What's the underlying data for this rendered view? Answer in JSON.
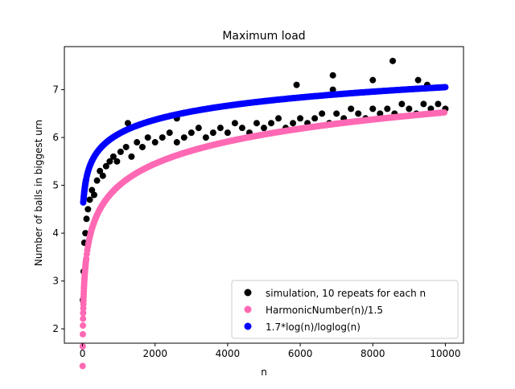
{
  "chart_data": {
    "type": "scatter",
    "title": "Maximum load",
    "xlabel": "n",
    "ylabel": "Number of balls in biggest urn",
    "xlim": [
      -500,
      10500
    ],
    "ylim": [
      1.7,
      7.9
    ],
    "xticks": [
      0,
      2000,
      4000,
      6000,
      8000,
      10000
    ],
    "yticks": [
      2,
      3,
      4,
      5,
      6,
      7
    ],
    "grid": false,
    "legend_position": "lower-right",
    "series": [
      {
        "name": "simulation, 10 repeats for each n",
        "color": "#000000",
        "x": [
          10,
          30,
          50,
          80,
          110,
          150,
          200,
          260,
          320,
          400,
          480,
          560,
          650,
          750,
          850,
          950,
          1050,
          1200,
          1350,
          1500,
          1650,
          1800,
          2000,
          2200,
          2400,
          2600,
          2800,
          3000,
          3200,
          3400,
          3600,
          3800,
          4000,
          4200,
          4400,
          4600,
          4800,
          5000,
          5200,
          5400,
          5600,
          5800,
          6000,
          6200,
          6400,
          6600,
          6800,
          6900,
          7000,
          7200,
          7400,
          7600,
          7800,
          8000,
          8200,
          8400,
          8550,
          8600,
          8800,
          9000,
          9200,
          9400,
          9600,
          9800,
          10000,
          1250,
          2600,
          5900,
          6900,
          8000,
          9250,
          9500
        ],
        "y": [
          2.6,
          3.2,
          3.8,
          4.0,
          4.3,
          4.5,
          4.7,
          4.9,
          4.8,
          5.1,
          5.3,
          5.2,
          5.4,
          5.5,
          5.6,
          5.5,
          5.7,
          5.8,
          5.6,
          5.9,
          5.8,
          6.0,
          5.9,
          6.0,
          6.1,
          5.9,
          6.0,
          6.1,
          6.2,
          6.0,
          6.1,
          6.2,
          6.1,
          6.3,
          6.2,
          6.1,
          6.3,
          6.2,
          6.3,
          6.4,
          6.2,
          6.3,
          6.4,
          6.3,
          6.4,
          6.5,
          6.3,
          7.3,
          6.5,
          6.4,
          6.6,
          6.5,
          6.4,
          6.6,
          6.5,
          6.6,
          7.6,
          6.5,
          6.7,
          6.6,
          6.5,
          6.7,
          6.6,
          6.7,
          6.6,
          6.3,
          6.4,
          7.1,
          7.0,
          7.2,
          7.2,
          7.1
        ]
      },
      {
        "name": "HarmonicNumber(n)/1.5",
        "color": "#ff69b4",
        "formula": "HarmonicNumber(n)/1.5"
      },
      {
        "name": "1.7*log(n)/loglog(n)",
        "color": "#0000ff",
        "formula": "1.7*log(n)/loglog(n)"
      }
    ]
  }
}
